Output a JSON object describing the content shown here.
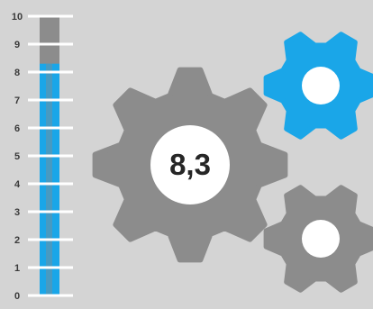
{
  "gauge": {
    "value": 8.3,
    "max": 10,
    "ticks": [
      "0",
      "1",
      "2",
      "3",
      "4",
      "5",
      "6",
      "7",
      "8",
      "9",
      "10"
    ]
  },
  "center_gear": {
    "label": "8,3"
  },
  "colors": {
    "background": "#d4d4d4",
    "gear_gray": "#8c8c8c",
    "accent_blue": "#1aa6e8",
    "white": "#ffffff",
    "tick_label": "#3b3b3b"
  }
}
